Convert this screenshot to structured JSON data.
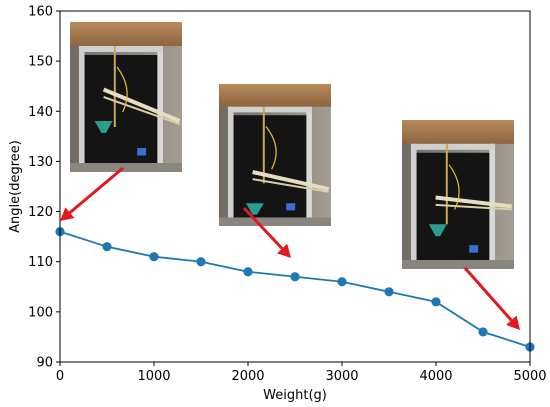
{
  "chart_data": {
    "type": "line",
    "xlabel": "Weight(g)",
    "ylabel": "Angle(degree)",
    "xlim": [
      0,
      5000
    ],
    "ylim": [
      90,
      160
    ],
    "x_ticks": [
      "0",
      "1000",
      "2000",
      "3000",
      "4000",
      "5000"
    ],
    "y_ticks": [
      "90",
      "100",
      "110",
      "120",
      "130",
      "140",
      "150",
      "160"
    ],
    "grid": false,
    "series": [
      {
        "x": [
          0,
          500,
          1000,
          1500,
          2000,
          2500,
          3000,
          3500,
          4000,
          4500,
          5000
        ],
        "values": [
          116,
          113,
          111,
          110,
          108,
          107,
          106,
          104,
          102,
          96,
          93
        ],
        "color": "#1f77b4"
      }
    ],
    "annotations": [
      {
        "type": "photo-inset",
        "points_to": {
          "x": 0,
          "y": 116
        }
      },
      {
        "type": "photo-inset",
        "points_to": {
          "x": 2500,
          "y": 107
        }
      },
      {
        "type": "photo-inset",
        "points_to": {
          "x": 5000,
          "y": 93
        }
      }
    ],
    "arrow_color": "#e0191e"
  }
}
